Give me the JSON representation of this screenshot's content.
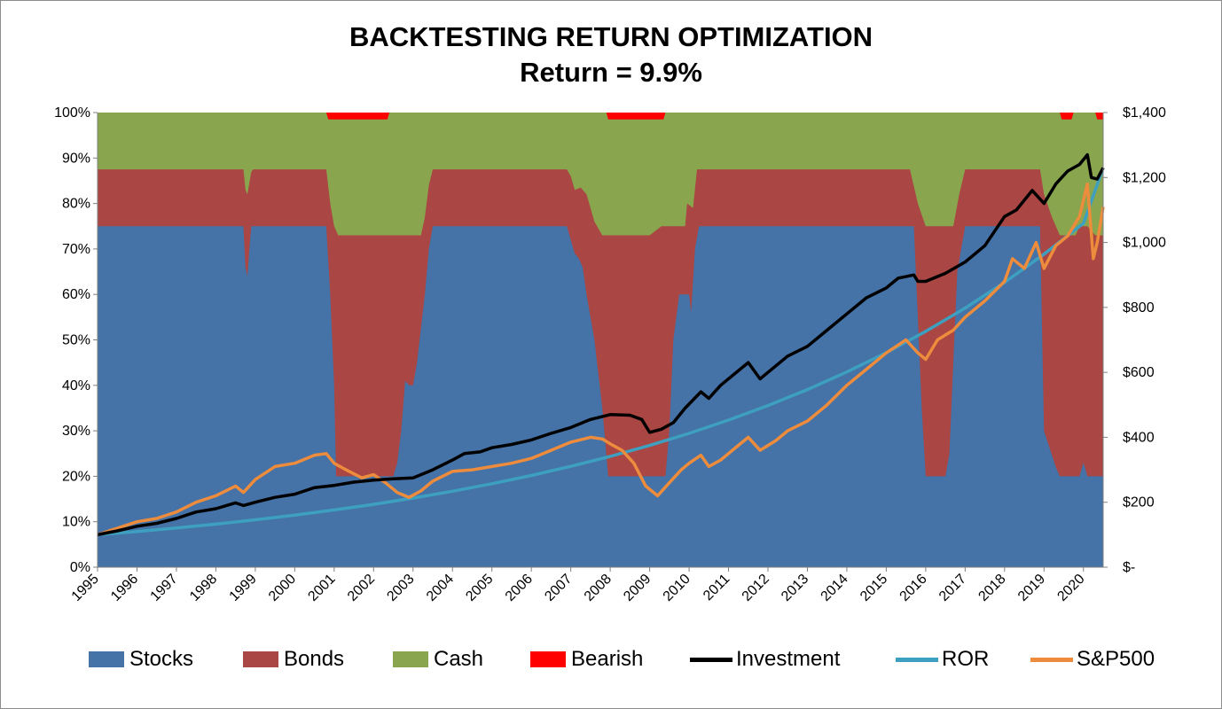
{
  "chart_data": {
    "type": "area",
    "title": "BACKTESTING RETURN OPTIMIZATION",
    "subtitle": "Return = 9.9%",
    "x_ticks": [
      "1995",
      "1996",
      "1997",
      "1998",
      "1999",
      "2000",
      "2001",
      "2002",
      "2003",
      "2004",
      "2005",
      "2006",
      "2007",
      "2008",
      "2009",
      "2010",
      "2011",
      "2012",
      "2013",
      "2014",
      "2015",
      "2016",
      "2017",
      "2018",
      "2019",
      "2020"
    ],
    "y_left_ticks": [
      "0%",
      "10%",
      "20%",
      "30%",
      "40%",
      "50%",
      "60%",
      "70%",
      "80%",
      "90%",
      "100%"
    ],
    "y_right_ticks": [
      "$-",
      "$200",
      "$400",
      "$600",
      "$800",
      "$1,000",
      "$1,200",
      "$1,400"
    ],
    "y_left_range": [
      0,
      1
    ],
    "y_right_range": [
      0,
      1400
    ],
    "x_range": [
      1995.0,
      2020.5
    ],
    "legend_position": "bottom",
    "colors": {
      "Stocks": "#4572a7",
      "Bonds": "#aa4643",
      "Cash": "#89a54e",
      "Bearish": "#ff0000",
      "Investment": "#000000",
      "ROR": "#3ea0c0",
      "S&P500": "#ec8c3c"
    },
    "allocation_series": [
      {
        "name": "Stocks",
        "points": [
          [
            1995.0,
            0.75
          ],
          [
            1998.7,
            0.75
          ],
          [
            1998.75,
            0.66
          ],
          [
            1998.8,
            0.64
          ],
          [
            1998.85,
            0.7
          ],
          [
            1998.9,
            0.75
          ],
          [
            2000.8,
            0.75
          ],
          [
            2000.9,
            0.6
          ],
          [
            2001.0,
            0.4
          ],
          [
            2001.05,
            0.2
          ],
          [
            2002.5,
            0.2
          ],
          [
            2002.6,
            0.23
          ],
          [
            2002.7,
            0.3
          ],
          [
            2002.8,
            0.41
          ],
          [
            2002.9,
            0.4
          ],
          [
            2003.0,
            0.4
          ],
          [
            2003.1,
            0.45
          ],
          [
            2003.3,
            0.6
          ],
          [
            2003.4,
            0.7
          ],
          [
            2003.5,
            0.75
          ],
          [
            2006.9,
            0.75
          ],
          [
            2007.0,
            0.72
          ],
          [
            2007.1,
            0.69
          ],
          [
            2007.2,
            0.68
          ],
          [
            2007.3,
            0.66
          ],
          [
            2007.4,
            0.6
          ],
          [
            2007.6,
            0.5
          ],
          [
            2007.8,
            0.35
          ],
          [
            2007.95,
            0.2
          ],
          [
            2009.4,
            0.2
          ],
          [
            2009.5,
            0.3
          ],
          [
            2009.6,
            0.5
          ],
          [
            2009.75,
            0.6
          ],
          [
            2010.0,
            0.6
          ],
          [
            2010.05,
            0.56
          ],
          [
            2010.15,
            0.7
          ],
          [
            2010.25,
            0.75
          ],
          [
            2015.7,
            0.75
          ],
          [
            2015.8,
            0.55
          ],
          [
            2015.9,
            0.35
          ],
          [
            2016.0,
            0.2
          ],
          [
            2016.5,
            0.2
          ],
          [
            2016.6,
            0.25
          ],
          [
            2016.7,
            0.45
          ],
          [
            2016.8,
            0.65
          ],
          [
            2016.9,
            0.7
          ],
          [
            2017.0,
            0.75
          ],
          [
            2018.9,
            0.75
          ],
          [
            2019.0,
            0.3
          ],
          [
            2019.3,
            0.22
          ],
          [
            2019.4,
            0.2
          ],
          [
            2019.9,
            0.2
          ],
          [
            2020.0,
            0.23
          ],
          [
            2020.1,
            0.2
          ],
          [
            2020.5,
            0.2
          ]
        ]
      },
      {
        "name": "Bonds",
        "points": [
          [
            1995.0,
            0.875
          ],
          [
            1998.7,
            0.875
          ],
          [
            1998.75,
            0.83
          ],
          [
            1998.8,
            0.82
          ],
          [
            1998.9,
            0.87
          ],
          [
            1998.95,
            0.875
          ],
          [
            2000.8,
            0.875
          ],
          [
            2000.9,
            0.8
          ],
          [
            2001.0,
            0.75
          ],
          [
            2001.1,
            0.73
          ],
          [
            2003.2,
            0.73
          ],
          [
            2003.3,
            0.77
          ],
          [
            2003.4,
            0.84
          ],
          [
            2003.5,
            0.875
          ],
          [
            2006.9,
            0.875
          ],
          [
            2007.0,
            0.86
          ],
          [
            2007.1,
            0.83
          ],
          [
            2007.25,
            0.835
          ],
          [
            2007.4,
            0.82
          ],
          [
            2007.5,
            0.79
          ],
          [
            2007.6,
            0.76
          ],
          [
            2007.8,
            0.73
          ],
          [
            2009.0,
            0.73
          ],
          [
            2009.3,
            0.75
          ],
          [
            2009.9,
            0.75
          ],
          [
            2009.95,
            0.8
          ],
          [
            2010.1,
            0.79
          ],
          [
            2010.2,
            0.875
          ],
          [
            2015.6,
            0.875
          ],
          [
            2015.8,
            0.8
          ],
          [
            2016.0,
            0.75
          ],
          [
            2016.7,
            0.75
          ],
          [
            2016.85,
            0.82
          ],
          [
            2017.0,
            0.875
          ],
          [
            2018.9,
            0.875
          ],
          [
            2019.0,
            0.82
          ],
          [
            2019.2,
            0.77
          ],
          [
            2019.4,
            0.73
          ],
          [
            2019.8,
            0.73
          ],
          [
            2019.9,
            0.75
          ],
          [
            2020.1,
            0.75
          ],
          [
            2020.3,
            0.73
          ],
          [
            2020.5,
            0.73
          ]
        ]
      },
      {
        "name": "Cash",
        "points": [
          [
            1995.0,
            1.0
          ],
          [
            2020.5,
            1.0
          ]
        ]
      },
      {
        "name": "Bearish",
        "points": [
          [
            1995.0,
            1.0
          ],
          [
            2000.8,
            1.0
          ],
          [
            2000.85,
            0.985
          ],
          [
            2002.35,
            0.985
          ],
          [
            2002.4,
            1.0
          ],
          [
            2007.9,
            1.0
          ],
          [
            2007.95,
            0.985
          ],
          [
            2009.35,
            0.985
          ],
          [
            2009.4,
            1.0
          ],
          [
            2019.4,
            1.0
          ],
          [
            2019.45,
            0.985
          ],
          [
            2019.7,
            0.985
          ],
          [
            2019.75,
            1.0
          ],
          [
            2020.3,
            1.0
          ],
          [
            2020.35,
            0.985
          ],
          [
            2020.5,
            0.985
          ]
        ]
      }
    ],
    "line_series": [
      {
        "name": "Investment",
        "points": [
          [
            1995.0,
            100
          ],
          [
            1995.5,
            112
          ],
          [
            1996.0,
            126
          ],
          [
            1996.5,
            135
          ],
          [
            1997.0,
            150
          ],
          [
            1997.5,
            170
          ],
          [
            1998.0,
            180
          ],
          [
            1998.5,
            198
          ],
          [
            1998.7,
            190
          ],
          [
            1999.0,
            200
          ],
          [
            1999.5,
            215
          ],
          [
            2000.0,
            225
          ],
          [
            2000.5,
            245
          ],
          [
            2001.0,
            252
          ],
          [
            2001.5,
            262
          ],
          [
            2002.0,
            268
          ],
          [
            2002.5,
            272
          ],
          [
            2003.0,
            275
          ],
          [
            2003.5,
            300
          ],
          [
            2004.0,
            330
          ],
          [
            2004.3,
            350
          ],
          [
            2004.7,
            355
          ],
          [
            2005.0,
            368
          ],
          [
            2005.5,
            378
          ],
          [
            2006.0,
            392
          ],
          [
            2006.5,
            412
          ],
          [
            2007.0,
            430
          ],
          [
            2007.5,
            455
          ],
          [
            2008.0,
            470
          ],
          [
            2008.5,
            468
          ],
          [
            2008.8,
            455
          ],
          [
            2009.0,
            415
          ],
          [
            2009.3,
            425
          ],
          [
            2009.6,
            445
          ],
          [
            2009.9,
            490
          ],
          [
            2010.3,
            540
          ],
          [
            2010.5,
            520
          ],
          [
            2010.8,
            560
          ],
          [
            2011.2,
            600
          ],
          [
            2011.5,
            630
          ],
          [
            2011.8,
            580
          ],
          [
            2012.2,
            620
          ],
          [
            2012.5,
            650
          ],
          [
            2013.0,
            680
          ],
          [
            2013.5,
            730
          ],
          [
            2014.0,
            780
          ],
          [
            2014.5,
            830
          ],
          [
            2015.0,
            860
          ],
          [
            2015.3,
            890
          ],
          [
            2015.7,
            900
          ],
          [
            2015.8,
            880
          ],
          [
            2016.0,
            880
          ],
          [
            2016.5,
            905
          ],
          [
            2017.0,
            940
          ],
          [
            2017.5,
            990
          ],
          [
            2018.0,
            1080
          ],
          [
            2018.3,
            1100
          ],
          [
            2018.7,
            1160
          ],
          [
            2019.0,
            1120
          ],
          [
            2019.3,
            1180
          ],
          [
            2019.6,
            1220
          ],
          [
            2019.9,
            1240
          ],
          [
            2020.1,
            1270
          ],
          [
            2020.2,
            1200
          ],
          [
            2020.35,
            1195
          ],
          [
            2020.5,
            1230
          ]
        ]
      },
      {
        "name": "ROR",
        "points": [
          [
            1995.0,
            100
          ],
          [
            1996.0,
            109.9
          ],
          [
            1997.0,
            120.8
          ],
          [
            1998.0,
            132.7
          ],
          [
            1999.0,
            145.9
          ],
          [
            2000.0,
            160.3
          ],
          [
            2001.0,
            176.2
          ],
          [
            2002.0,
            193.6
          ],
          [
            2003.0,
            212.8
          ],
          [
            2004.0,
            233.9
          ],
          [
            2005.0,
            257.0
          ],
          [
            2006.0,
            282.5
          ],
          [
            2007.0,
            310.5
          ],
          [
            2008.0,
            341.2
          ],
          [
            2009.0,
            375.0
          ],
          [
            2010.0,
            412.1
          ],
          [
            2011.0,
            452.9
          ],
          [
            2012.0,
            497.7
          ],
          [
            2013.0,
            547.0
          ],
          [
            2014.0,
            601.2
          ],
          [
            2015.0,
            660.7
          ],
          [
            2016.0,
            726.1
          ],
          [
            2017.0,
            798.0
          ],
          [
            2018.0,
            877.0
          ],
          [
            2019.0,
            963.8
          ],
          [
            2020.0,
            1059.2
          ],
          [
            2020.5,
            1230
          ]
        ]
      },
      {
        "name": "S&P500",
        "points": [
          [
            1995.0,
            100
          ],
          [
            1995.5,
            120
          ],
          [
            1996.0,
            140
          ],
          [
            1996.5,
            150
          ],
          [
            1997.0,
            170
          ],
          [
            1997.5,
            200
          ],
          [
            1998.0,
            220
          ],
          [
            1998.5,
            250
          ],
          [
            1998.7,
            230
          ],
          [
            1999.0,
            270
          ],
          [
            1999.5,
            310
          ],
          [
            2000.0,
            320
          ],
          [
            2000.5,
            345
          ],
          [
            2000.8,
            350
          ],
          [
            2001.0,
            320
          ],
          [
            2001.3,
            300
          ],
          [
            2001.7,
            275
          ],
          [
            2002.0,
            285
          ],
          [
            2002.3,
            260
          ],
          [
            2002.6,
            230
          ],
          [
            2002.9,
            215
          ],
          [
            2003.2,
            235
          ],
          [
            2003.5,
            265
          ],
          [
            2004.0,
            295
          ],
          [
            2004.5,
            300
          ],
          [
            2005.0,
            310
          ],
          [
            2005.5,
            320
          ],
          [
            2006.0,
            335
          ],
          [
            2006.5,
            360
          ],
          [
            2007.0,
            385
          ],
          [
            2007.5,
            400
          ],
          [
            2007.8,
            395
          ],
          [
            2008.0,
            380
          ],
          [
            2008.3,
            360
          ],
          [
            2008.6,
            320
          ],
          [
            2008.9,
            250
          ],
          [
            2009.2,
            220
          ],
          [
            2009.5,
            260
          ],
          [
            2009.8,
            300
          ],
          [
            2010.0,
            320
          ],
          [
            2010.3,
            345
          ],
          [
            2010.5,
            310
          ],
          [
            2010.8,
            330
          ],
          [
            2011.2,
            370
          ],
          [
            2011.5,
            400
          ],
          [
            2011.8,
            360
          ],
          [
            2012.2,
            390
          ],
          [
            2012.5,
            420
          ],
          [
            2013.0,
            450
          ],
          [
            2013.5,
            500
          ],
          [
            2014.0,
            560
          ],
          [
            2014.5,
            610
          ],
          [
            2015.0,
            660
          ],
          [
            2015.5,
            700
          ],
          [
            2015.8,
            660
          ],
          [
            2016.0,
            640
          ],
          [
            2016.3,
            700
          ],
          [
            2016.7,
            730
          ],
          [
            2017.0,
            770
          ],
          [
            2017.5,
            820
          ],
          [
            2018.0,
            880
          ],
          [
            2018.2,
            950
          ],
          [
            2018.5,
            920
          ],
          [
            2018.8,
            1000
          ],
          [
            2019.0,
            920
          ],
          [
            2019.3,
            990
          ],
          [
            2019.6,
            1020
          ],
          [
            2019.9,
            1080
          ],
          [
            2020.1,
            1180
          ],
          [
            2020.25,
            950
          ],
          [
            2020.35,
            1000
          ],
          [
            2020.5,
            1110
          ]
        ]
      }
    ]
  }
}
